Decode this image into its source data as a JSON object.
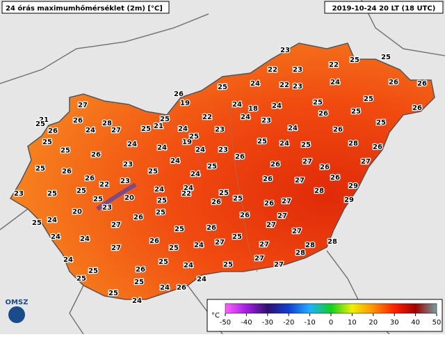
{
  "header": {
    "title": "24 órás maximumhőmérséklet (2m) [°C]",
    "time": "2019-10-24 20 LT (18 UTC)"
  },
  "stations": [
    23,
    25,
    22,
    23,
    22,
    25,
    25,
    24,
    22,
    23,
    24,
    26,
    26,
    26,
    19,
    24,
    18,
    24,
    25,
    25,
    27,
    22,
    24,
    23,
    26,
    25,
    26,
    21,
    25,
    26,
    28,
    27,
    25,
    21,
    25,
    24,
    23,
    24,
    26,
    25,
    26,
    25,
    25,
    24,
    25,
    19,
    24,
    23,
    25,
    24,
    25,
    28,
    26,
    24,
    26,
    24,
    23,
    26,
    27,
    26,
    27,
    25,
    26,
    26,
    24,
    25,
    26,
    22,
    23,
    24,
    25,
    26,
    27,
    26,
    25,
    25,
    24,
    24,
    25,
    25,
    23,
    25,
    20,
    25,
    22,
    26,
    26,
    27,
    28,
    29,
    29,
    20,
    23,
    25,
    26,
    27,
    25,
    24,
    26,
    27,
    25,
    26,
    27,
    27,
    24,
    24,
    26,
    27,
    25,
    24,
    27,
    28,
    28,
    27,
    25,
    28,
    24,
    25,
    24,
    25,
    27,
    27,
    25,
    26,
    25,
    25,
    24,
    24,
    26,
    25,
    24
  ],
  "legend": {
    "unit": "°C",
    "ticks": [
      -50,
      -40,
      -30,
      -20,
      -10,
      0,
      10,
      20,
      30,
      40,
      50
    ]
  },
  "logo": "OMSZ"
}
